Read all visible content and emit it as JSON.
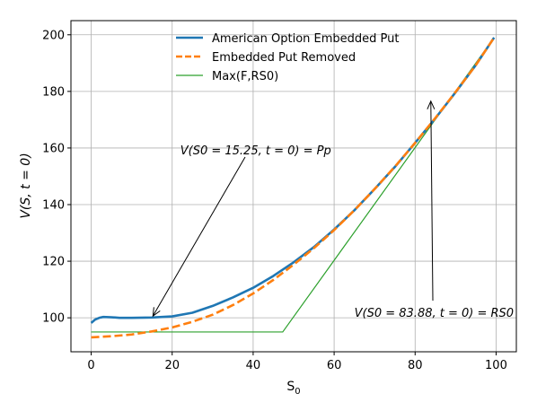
{
  "chart_data": {
    "type": "line",
    "xlabel": "S0",
    "ylabel": "V(S, t = 0)",
    "xlim": [
      -5,
      105
    ],
    "ylim": [
      88,
      205
    ],
    "xticks": [
      0,
      20,
      40,
      60,
      80,
      100
    ],
    "yticks": [
      100,
      120,
      140,
      160,
      180,
      200
    ],
    "grid": true,
    "legend_position": "upper-center",
    "series": [
      {
        "name": "American Option Embedded Put",
        "color": "#1f77b4",
        "style": "solid",
        "x": [
          0,
          1,
          2,
          3,
          5,
          7,
          10,
          15,
          20,
          25,
          30,
          35,
          40,
          45,
          50,
          55,
          60,
          65,
          70,
          75,
          80,
          85,
          90,
          95,
          99.5
        ],
        "y": [
          98.2,
          99.4,
          100.0,
          100.3,
          100.2,
          100.0,
          100.0,
          100.1,
          100.5,
          101.8,
          104.2,
          107.2,
          110.6,
          114.8,
          119.6,
          125.0,
          131.2,
          138.0,
          145.5,
          153.3,
          161.8,
          170.5,
          179.7,
          189.3,
          199.0
        ]
      },
      {
        "name": "Embedded Put Removed",
        "color": "#ff7f0e",
        "style": "dashed",
        "x": [
          0,
          5,
          10,
          15,
          20,
          25,
          30,
          35,
          40,
          45,
          50,
          55,
          60,
          65,
          70,
          75,
          80,
          85,
          90,
          95,
          99.5
        ],
        "y": [
          93.1,
          93.5,
          94.1,
          95.2,
          96.6,
          98.6,
          101.1,
          104.5,
          108.6,
          113.4,
          118.8,
          124.6,
          131.0,
          138.0,
          145.5,
          153.4,
          161.8,
          170.6,
          179.8,
          189.3,
          199.0
        ]
      },
      {
        "name": "Max(F,RS0)",
        "color": "#2ca02c",
        "style": "thin",
        "x": [
          0,
          47.3,
          99.5
        ],
        "y": [
          95.0,
          95.0,
          199.0
        ]
      }
    ],
    "annotations": [
      {
        "text": "V(S0 = 15.25, t = 0) = Pp",
        "arrow_to": [
          15.25,
          100.0
        ],
        "text_at": [
          22,
          159
        ]
      },
      {
        "text": "V(S0 = 83.88, t = 0) = RS0",
        "arrow_to": [
          83.88,
          168.0
        ],
        "text_at": [
          65,
          100
        ]
      }
    ]
  }
}
